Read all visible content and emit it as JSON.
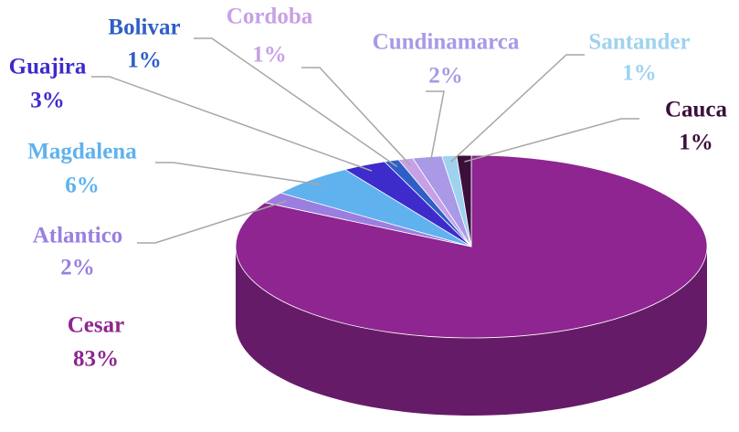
{
  "chart_data": {
    "type": "pie",
    "categories": [
      "Cesar",
      "Atlantico",
      "Magdalena",
      "Guajira",
      "Bolivar",
      "Cordoba",
      "Cundinamarca",
      "Santander",
      "Cauca"
    ],
    "values": [
      83,
      2,
      6,
      3,
      1,
      1,
      2,
      1,
      1
    ],
    "value_labels": [
      "83%",
      "2%",
      "6%",
      "3%",
      "1%",
      "1%",
      "2%",
      "1%",
      "1%"
    ],
    "colors": [
      "#8e2590",
      "#9a7fe0",
      "#5fb2ee",
      "#3d2bcc",
      "#2f5ec6",
      "#c8a0e6",
      "#a999e6",
      "#9fd2ef",
      "#3b0f3b"
    ]
  }
}
